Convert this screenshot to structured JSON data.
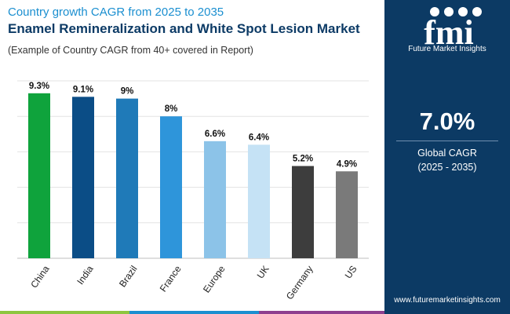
{
  "header": {
    "title_line1": "Country growth CAGR from 2025 to 2035",
    "title_line2": "Enamel Remineralization and White Spot Lesion Market",
    "subtitle": "(Example of Country CAGR from 40+ covered in Report)"
  },
  "sidebar": {
    "logo_text": "fmi",
    "logo_tagline": "Future Market Insights",
    "big_value": "7.0%",
    "cagr_label": "Global CAGR",
    "cagr_period": "(2025 - 2035)",
    "url": "www.futuremarketinsights.com"
  },
  "colors": {
    "sidebar_bg": "#0c3a64",
    "title_accent": "#1b8fd0",
    "title_dark": "#0d3b66",
    "footer_bar": [
      "#8dc63f",
      "#1b8fd0",
      "#8e3f8f",
      "#0c3a64"
    ]
  },
  "chart_data": {
    "type": "bar",
    "categories": [
      "China",
      "India",
      "Brazil",
      "France",
      "Europe",
      "UK",
      "Germany",
      "US"
    ],
    "values": [
      9.3,
      9.1,
      9.0,
      8.0,
      6.6,
      6.4,
      5.2,
      4.9
    ],
    "value_labels": [
      "9.3%",
      "9.1%",
      "9%",
      "8%",
      "6.6%",
      "6.4%",
      "5.2%",
      "4.9%"
    ],
    "bar_colors": [
      "#0fa33c",
      "#0b4d86",
      "#1f7ab8",
      "#2e95da",
      "#8cc3e8",
      "#c5e2f5",
      "#3d3d3d",
      "#7a7a7a"
    ],
    "ylim": [
      0,
      10
    ],
    "grid": true,
    "gridline_count": 5,
    "title": "",
    "xlabel": "",
    "ylabel": ""
  }
}
